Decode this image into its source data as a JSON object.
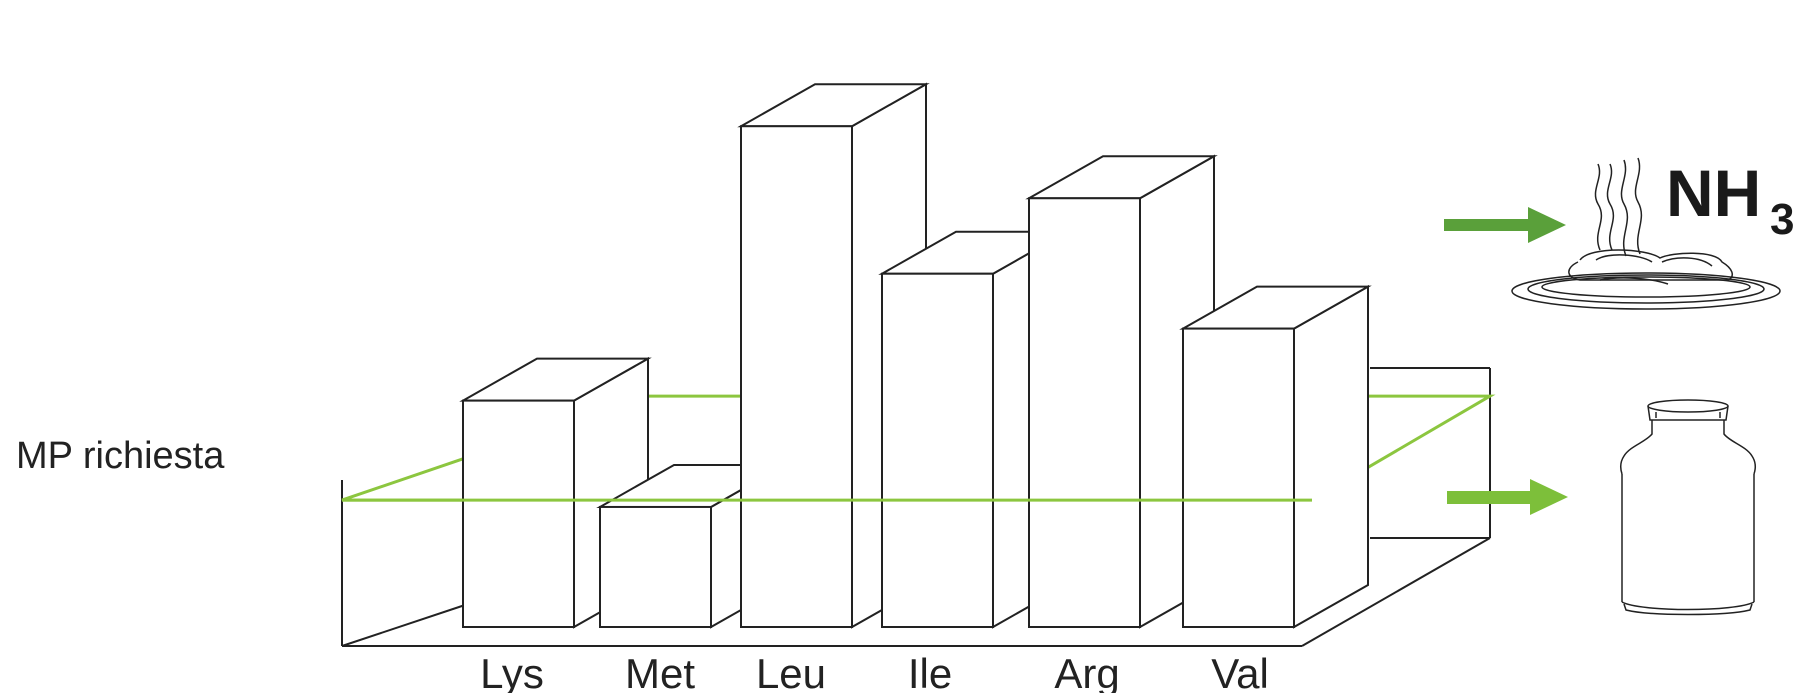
{
  "y_axis_label": "MP richiesta",
  "outputs": {
    "ammonia": {
      "label": "NH",
      "subscript": "3",
      "icon": "manure-pile-icon"
    },
    "milk": {
      "icon": "milk-can-icon"
    }
  },
  "colors": {
    "requirement_line": "#8cc63f",
    "arrow_top": "#5aa03a",
    "arrow_bottom": "#7dbf3a",
    "outline": "#222222"
  },
  "chart_data": {
    "type": "bar",
    "categories": [
      "Lys",
      "Met",
      "Leu",
      "Ile",
      "Arg",
      "Val"
    ],
    "values": [
      66,
      35,
      146,
      103,
      125,
      87
    ],
    "requirement_level": 37
  }
}
